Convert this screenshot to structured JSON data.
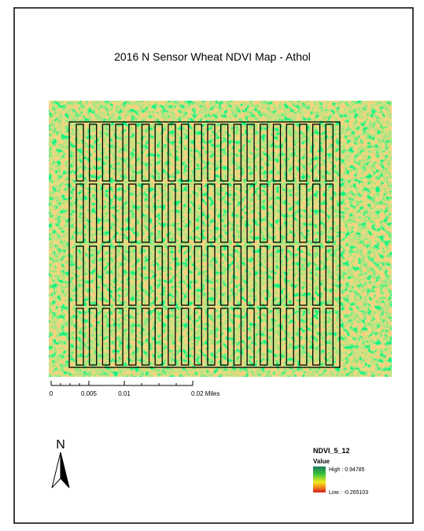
{
  "header": {
    "title": "2016 N Sensor Wheat NDVI Map - Athol"
  },
  "scale_bar": {
    "labels": [
      "0",
      "0.005",
      "0.01",
      "0.02 Miles"
    ]
  },
  "north_arrow": {
    "label": "N"
  },
  "legend": {
    "title": "NDVI_5_12",
    "subtitle": "Value",
    "high": "High : 0.94785",
    "low": "Low : -0.265103"
  }
}
